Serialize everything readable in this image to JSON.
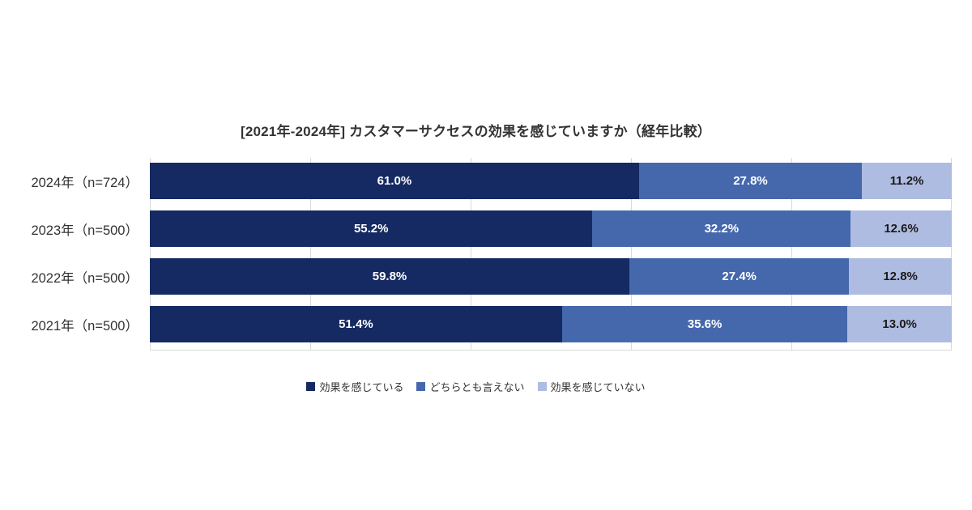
{
  "chart_data": {
    "type": "bar",
    "stacked": true,
    "orientation": "horizontal",
    "title": "[2021年-2024年] カスタマーサクセスの効果を感じていますか（経年比較）",
    "categories": [
      "2024年（n=724）",
      "2023年（n=500）",
      "2022年（n=500）",
      "2021年（n=500）"
    ],
    "series": [
      {
        "name": "効果を感じている",
        "color": "#152a62",
        "label_color": "#ffffff",
        "values": [
          61.0,
          55.2,
          59.8,
          51.4
        ]
      },
      {
        "name": "どちらとも言えない",
        "color": "#4568ad",
        "label_color": "#ffffff",
        "values": [
          27.8,
          32.2,
          27.4,
          35.6
        ]
      },
      {
        "name": "効果を感じていない",
        "color": "#afbce1",
        "label_color": "#1a1a1a",
        "values": [
          11.2,
          12.6,
          12.8,
          13.0
        ]
      }
    ],
    "value_suffix": "%",
    "xlim": [
      0,
      100
    ],
    "grid": "vertical",
    "gridline_color": "#d9d9d9",
    "legend_position": "bottom"
  }
}
